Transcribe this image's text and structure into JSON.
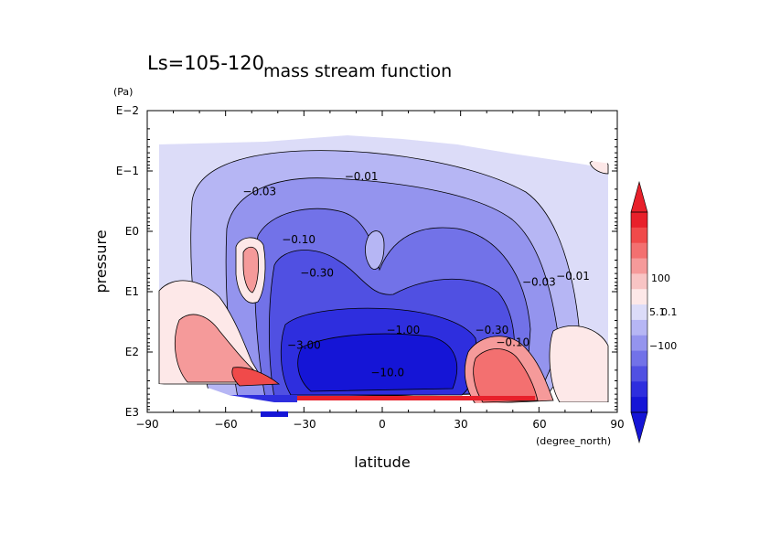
{
  "chart_data": {
    "type": "heatmap",
    "header": "Ls=105-120",
    "title": "mass stream function",
    "xlabel": "latitude",
    "xunit": "(degree_north)",
    "ylabel": "pressure",
    "yunit": "(Pa)",
    "xlim": [
      -90,
      90
    ],
    "y_log_range": [
      -2,
      3
    ],
    "y_reversed": true,
    "xticks": [
      "−90",
      "−60",
      "−30",
      "0",
      "30",
      "60",
      "90"
    ],
    "yticks": [
      "E−2",
      "E−1",
      "E0",
      "E1",
      "E2",
      "E3"
    ],
    "colorbar": {
      "labels": [
        "100",
        "5.1",
        "0.1",
        "−100"
      ],
      "colors": [
        "#e8202a",
        "#f04a4a",
        "#f37070",
        "#f59a9a",
        "#f8c4c4",
        "#fde8e8",
        "#dcdcf8",
        "#b6b6f4",
        "#9494ee",
        "#7272e8",
        "#5050e2",
        "#2e2ede",
        "#1515d6"
      ]
    },
    "contour_labels": [
      {
        "text": "−0.01",
        "lat": -8,
        "logp": -0.85
      },
      {
        "text": "−0.03",
        "lat": -47,
        "logp": -0.6
      },
      {
        "text": "−0.10",
        "lat": -32,
        "logp": 0.2
      },
      {
        "text": "−0.30",
        "lat": -25,
        "logp": 0.75
      },
      {
        "text": "−1.00",
        "lat": 8,
        "logp": 1.7
      },
      {
        "text": "−3.00",
        "lat": -30,
        "logp": 1.95
      },
      {
        "text": "−10.0",
        "lat": 2,
        "logp": 2.4
      },
      {
        "text": "−0.30",
        "lat": 42,
        "logp": 1.7
      },
      {
        "text": "−0.10",
        "lat": 50,
        "logp": 1.9
      },
      {
        "text": "−0.03",
        "lat": 60,
        "logp": 0.9
      },
      {
        "text": "−0.01",
        "lat": 73,
        "logp": 0.8
      }
    ]
  }
}
